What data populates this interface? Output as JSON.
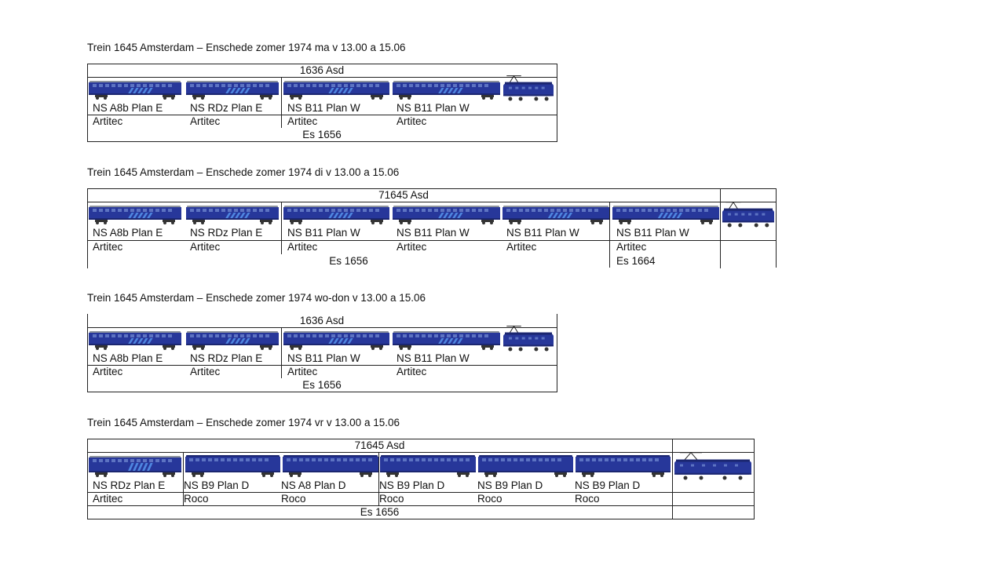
{
  "palette": {
    "coach_blue": "#27379a",
    "coach_blue_dark": "#1b2670",
    "roof_grey": "#8e949d",
    "stripe_light": "#4f86e0",
    "window": "#5d73c2",
    "bogie": "#333333",
    "line": "#222222"
  },
  "trains": [
    {
      "title": "Trein 1645 Amsterdam – Enschede zomer 1974 ma v 13.00 a 15.06",
      "header": "1636 Asd",
      "cars": [
        {
          "type": "NS A8b Plan E",
          "maker": "Artitec",
          "sprite": "coach-plan-e-icon"
        },
        {
          "type": "NS RDz Plan E",
          "maker": "Artitec",
          "sprite": "coach-plan-e-icon"
        },
        {
          "type": "NS B11 Plan W",
          "maker": "Artitec",
          "sprite": "coach-plan-w-icon"
        },
        {
          "type": "NS B11 Plan W",
          "maker": "Artitec",
          "sprite": "coach-plan-w-icon"
        }
      ],
      "loco": "electric-locomotive-icon",
      "footer": [
        "Es 1656"
      ]
    },
    {
      "title": "Trein 1645 Amsterdam – Enschede zomer 1974 di v 13.00 a 15.06",
      "header": "71645 Asd",
      "cars": [
        {
          "type": "NS A8b Plan E",
          "maker": "Artitec",
          "sprite": "coach-plan-e-icon"
        },
        {
          "type": "NS RDz Plan E",
          "maker": "Artitec",
          "sprite": "coach-plan-e-icon"
        },
        {
          "type": "NS B11 Plan W",
          "maker": "Artitec",
          "sprite": "coach-plan-w-icon"
        },
        {
          "type": "NS B11 Plan W",
          "maker": "Artitec",
          "sprite": "coach-plan-w-icon"
        },
        {
          "type": "NS B11 Plan W",
          "maker": "Artitec",
          "sprite": "coach-plan-w-icon"
        },
        {
          "type": "NS B11 Plan W",
          "maker": "Artitec",
          "sprite": "coach-plan-w-icon"
        }
      ],
      "loco": "electric-locomotive-icon",
      "footer": [
        "Es 1656",
        "Es 1664"
      ]
    },
    {
      "title": "Trein 1645 Amsterdam – Enschede zomer 1974 wo-don v 13.00 a 15.06",
      "header": "1636 Asd",
      "cars": [
        {
          "type": "NS A8b Plan E",
          "maker": "Artitec",
          "sprite": "coach-plan-e-icon"
        },
        {
          "type": "NS RDz Plan E",
          "maker": "Artitec",
          "sprite": "coach-plan-e-icon"
        },
        {
          "type": "NS B11 Plan W",
          "maker": "Artitec",
          "sprite": "coach-plan-w-icon"
        },
        {
          "type": "NS B11 Plan W",
          "maker": "Artitec",
          "sprite": "coach-plan-w-icon"
        }
      ],
      "loco": "electric-locomotive-icon",
      "footer": [
        "Es 1656"
      ]
    },
    {
      "title": "Trein 1645 Amsterdam – Enschede zomer 1974 vr v 13.00 a 15.06",
      "header": "71645 Asd",
      "cars": [
        {
          "type": "NS RDz Plan E",
          "maker": "Artitec",
          "sprite": "coach-plan-e-icon"
        },
        {
          "type": "NS B9 Plan D",
          "maker": "Roco",
          "sprite": "coach-plan-d-icon"
        },
        {
          "type": "NS A8 Plan D",
          "maker": "Roco",
          "sprite": "coach-plan-d-icon"
        },
        {
          "type": "NS B9 Plan D",
          "maker": "Roco",
          "sprite": "coach-plan-d-icon"
        },
        {
          "type": "NS B9 Plan D",
          "maker": "Roco",
          "sprite": "coach-plan-d-icon"
        },
        {
          "type": "NS B9 Plan D",
          "maker": "Roco",
          "sprite": "coach-plan-d-icon"
        }
      ],
      "loco": "electric-locomotive-icon",
      "footer": [
        "Es 1656"
      ]
    }
  ]
}
